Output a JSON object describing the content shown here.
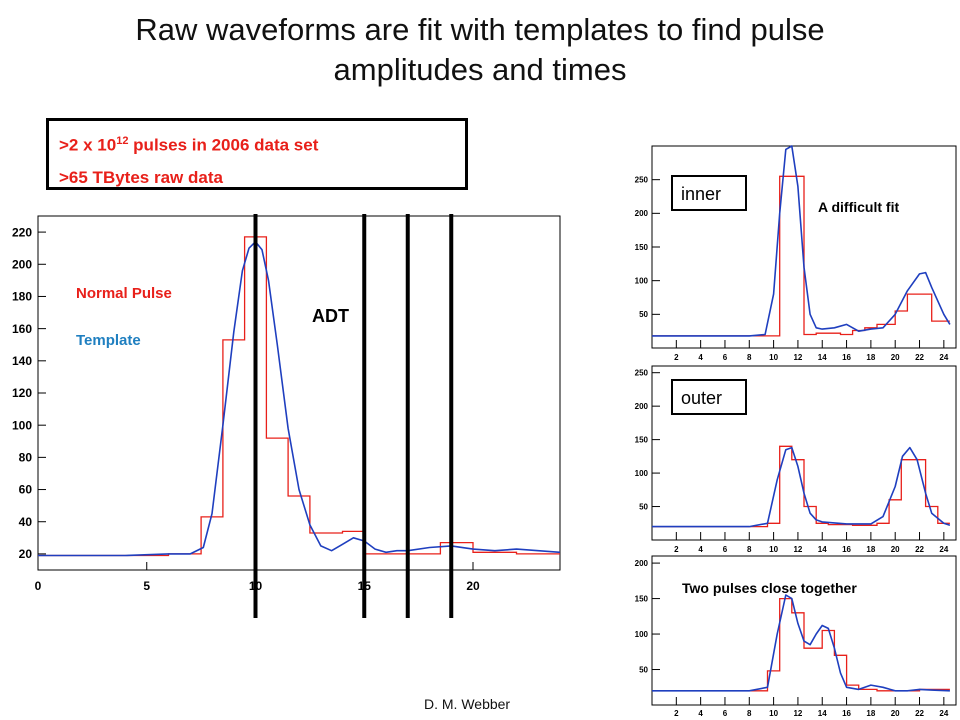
{
  "slide": {
    "title_line1": "Raw waveforms are fit with templates to find pulse",
    "title_line2": "amplitudes and times",
    "callout_a_pre": ">2 x 10",
    "callout_a_sup": "12",
    "callout_a_post": " pulses in 2006 data set",
    "callout_b": ">65 TBytes raw data",
    "footer": "D. M. Webber"
  },
  "colors": {
    "pulse": "#e8201a",
    "template": "#1f3fbf",
    "template_label": "#1f7fc0",
    "markers": "#000000"
  },
  "chart_data": [
    {
      "id": "main",
      "type": "line",
      "xlim": [
        0,
        24
      ],
      "ylim": [
        10,
        230
      ],
      "x_ticks": [
        0,
        5,
        10,
        15,
        20
      ],
      "y_ticks": [
        20,
        40,
        60,
        80,
        100,
        120,
        140,
        160,
        180,
        200,
        220
      ],
      "annotations": [
        "Normal Pulse",
        "Template",
        "ADT"
      ],
      "vertical_markers": [
        10,
        15,
        17,
        19
      ],
      "series": [
        {
          "name": "Normal Pulse",
          "kind": "step",
          "edges": [
            0,
            2,
            4,
            6,
            7.5,
            8.5,
            9.5,
            10.5,
            11.5,
            12.5,
            14,
            15,
            16,
            17,
            18.5,
            20,
            22,
            24
          ],
          "values": [
            19,
            19,
            19,
            20,
            43,
            153,
            217,
            92,
            56,
            33,
            34,
            20,
            20,
            20,
            27,
            21,
            20
          ]
        },
        {
          "name": "Template",
          "kind": "curve",
          "x": [
            0,
            2,
            4,
            6,
            7,
            7.6,
            8,
            8.5,
            9,
            9.4,
            9.7,
            10,
            10.3,
            10.6,
            11,
            11.5,
            12,
            12.5,
            13,
            13.5,
            14,
            14.5,
            15,
            15.5,
            16,
            16.5,
            17,
            18,
            19,
            20,
            21,
            22,
            23,
            24
          ],
          "values": [
            19,
            19,
            19,
            20,
            20,
            24,
            45,
            100,
            158,
            196,
            210,
            214,
            209,
            190,
            150,
            98,
            60,
            38,
            25,
            22,
            26,
            30,
            28,
            23,
            21,
            22,
            22,
            24,
            25,
            23,
            22,
            23,
            22,
            21
          ]
        }
      ]
    },
    {
      "id": "inner",
      "type": "line",
      "xlim": [
        0,
        25
      ],
      "ylim": [
        0,
        300
      ],
      "x_ticks": [
        2,
        4,
        6,
        8,
        10,
        12,
        14,
        16,
        18,
        20,
        22,
        24
      ],
      "y_ticks": [
        50,
        100,
        150,
        200,
        250
      ],
      "label": "inner",
      "annotation": "A difficult fit",
      "series": [
        {
          "kind": "step",
          "edges": [
            0,
            9.5,
            10.5,
            12.5,
            13.5,
            15.5,
            16.5,
            17.5,
            18.5,
            20,
            21,
            23,
            24.5
          ],
          "values": [
            18,
            18,
            255,
            20,
            22,
            20,
            26,
            30,
            35,
            55,
            80,
            40
          ]
        },
        {
          "kind": "curve",
          "x": [
            0,
            8,
            9.3,
            10,
            10.5,
            11,
            11.5,
            12,
            12.5,
            13,
            13.5,
            14,
            15,
            16,
            17,
            18,
            19,
            20,
            21,
            22,
            22.5,
            23,
            24,
            24.5
          ],
          "values": [
            18,
            18,
            20,
            80,
            200,
            295,
            300,
            240,
            120,
            50,
            30,
            28,
            30,
            35,
            25,
            28,
            30,
            50,
            85,
            110,
            112,
            90,
            50,
            35
          ]
        }
      ]
    },
    {
      "id": "outer",
      "type": "line",
      "xlim": [
        0,
        25
      ],
      "ylim": [
        0,
        260
      ],
      "x_ticks": [
        2,
        4,
        6,
        8,
        10,
        12,
        14,
        16,
        18,
        20,
        22,
        24
      ],
      "y_ticks": [
        50,
        100,
        150,
        200,
        250
      ],
      "label": "outer",
      "series": [
        {
          "kind": "step",
          "edges": [
            0,
            9.5,
            10.5,
            11.5,
            12.5,
            13.5,
            14.5,
            16.5,
            18.5,
            19.5,
            20.5,
            21.5,
            22.5,
            23.5,
            24.5
          ],
          "values": [
            20,
            25,
            140,
            120,
            50,
            25,
            23,
            22,
            25,
            60,
            120,
            120,
            50,
            25
          ]
        },
        {
          "kind": "curve",
          "x": [
            0,
            8,
            9.5,
            10.3,
            11,
            11.5,
            12,
            12.5,
            13,
            13.5,
            14,
            16,
            18,
            19,
            20,
            20.6,
            21.2,
            21.8,
            22.5,
            23,
            24,
            24.5
          ],
          "values": [
            20,
            20,
            25,
            90,
            135,
            138,
            110,
            70,
            40,
            30,
            27,
            24,
            24,
            35,
            80,
            125,
            138,
            120,
            70,
            40,
            25,
            22
          ]
        }
      ]
    },
    {
      "id": "close",
      "type": "line",
      "xlim": [
        0,
        25
      ],
      "ylim": [
        0,
        210
      ],
      "x_ticks": [
        2,
        4,
        6,
        8,
        10,
        12,
        14,
        16,
        18,
        20,
        22,
        24
      ],
      "y_ticks": [
        50,
        100,
        150,
        200
      ],
      "annotation": "Two pulses close together",
      "series": [
        {
          "kind": "step",
          "edges": [
            0,
            9.5,
            10.5,
            11.5,
            12.5,
            14,
            15,
            16,
            17,
            18.5,
            20,
            22,
            24.5
          ],
          "values": [
            20,
            48,
            150,
            130,
            80,
            105,
            70,
            28,
            22,
            20,
            20,
            22
          ]
        },
        {
          "kind": "curve",
          "x": [
            0,
            8,
            9.5,
            10.3,
            11,
            11.5,
            12,
            12.5,
            13,
            13.5,
            14,
            14.5,
            15,
            15.5,
            16,
            17,
            18,
            19,
            20,
            21,
            22,
            23,
            24.5
          ],
          "values": [
            20,
            20,
            25,
            100,
            155,
            150,
            115,
            90,
            85,
            100,
            112,
            108,
            80,
            45,
            25,
            22,
            28,
            25,
            20,
            20,
            22,
            21,
            20
          ]
        }
      ]
    }
  ]
}
